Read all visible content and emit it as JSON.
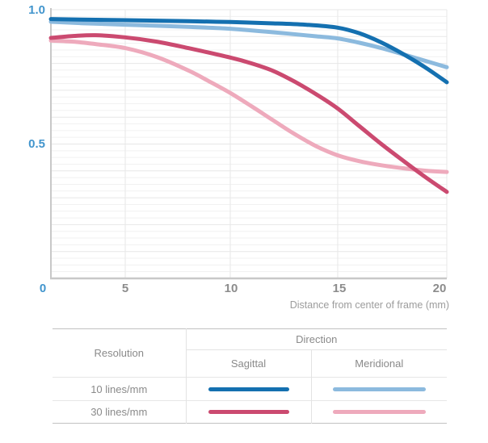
{
  "chart": {
    "y_axis": {
      "top_label": "1.0",
      "mid_label": "0.5"
    },
    "origin_label": "0",
    "x_axis": {
      "tick_labels": [
        "5",
        "10",
        "15",
        "20"
      ],
      "caption": "Distance from center of frame (mm)"
    },
    "colors": {
      "tick_blue": "#4295cd",
      "tick_gray": "#8c8c8c",
      "caption_gray": "#9c9c9c",
      "axis_line": "#c8c8c8",
      "grid_minor": "#f1f1f1",
      "grid_major": "#e7e7e7"
    }
  },
  "chart_data": {
    "type": "line",
    "title": "",
    "xlabel": "Distance from center of frame (mm)",
    "ylabel": "",
    "xlim": [
      0,
      20
    ],
    "ylim": [
      0,
      1
    ],
    "x_ticks": [
      0,
      5,
      10,
      15,
      20
    ],
    "y_ticks": [
      0,
      0.5,
      1.0
    ],
    "grid": true,
    "legend_position": "bottom-table",
    "series": [
      {
        "key": "10-sagittal",
        "name": "10 lines/mm Sagittal",
        "color": "#1470b0",
        "points": [
          [
            0,
            0.965
          ],
          [
            2,
            0.963
          ],
          [
            5,
            0.961
          ],
          [
            8,
            0.957
          ],
          [
            10,
            0.954
          ],
          [
            12,
            0.949
          ],
          [
            13.5,
            0.944
          ],
          [
            15,
            0.933
          ],
          [
            16,
            0.912
          ],
          [
            17,
            0.878
          ],
          [
            18,
            0.835
          ],
          [
            19,
            0.786
          ],
          [
            20,
            0.73
          ]
        ]
      },
      {
        "key": "10-meridional",
        "name": "10 lines/mm Meridional",
        "color": "#8cbade",
        "points": [
          [
            0,
            0.955
          ],
          [
            2,
            0.95
          ],
          [
            5,
            0.944
          ],
          [
            8,
            0.936
          ],
          [
            10,
            0.929
          ],
          [
            12,
            0.916
          ],
          [
            14,
            0.901
          ],
          [
            15,
            0.893
          ],
          [
            16,
            0.877
          ],
          [
            17,
            0.857
          ],
          [
            18,
            0.834
          ],
          [
            19,
            0.81
          ],
          [
            20,
            0.786
          ]
        ]
      },
      {
        "key": "30-sagittal",
        "name": "30 lines/mm Sagittal",
        "color": "#cb4a70",
        "points": [
          [
            0,
            0.895
          ],
          [
            1.5,
            0.902
          ],
          [
            3,
            0.905
          ],
          [
            5,
            0.897
          ],
          [
            6.5,
            0.881
          ],
          [
            8,
            0.857
          ],
          [
            10,
            0.822
          ],
          [
            11,
            0.8
          ],
          [
            12,
            0.772
          ],
          [
            13,
            0.732
          ],
          [
            14,
            0.685
          ],
          [
            15,
            0.632
          ],
          [
            16,
            0.566
          ],
          [
            17,
            0.5
          ],
          [
            18,
            0.438
          ],
          [
            19,
            0.378
          ],
          [
            20,
            0.322
          ]
        ]
      },
      {
        "key": "30-meridional",
        "name": "30 lines/mm Meridional",
        "color": "#eeaabc",
        "points": [
          [
            0,
            0.885
          ],
          [
            1.5,
            0.881
          ],
          [
            3,
            0.872
          ],
          [
            5,
            0.857
          ],
          [
            6.5,
            0.824
          ],
          [
            8,
            0.774
          ],
          [
            9,
            0.733
          ],
          [
            10,
            0.69
          ],
          [
            11,
            0.64
          ],
          [
            12,
            0.588
          ],
          [
            13,
            0.537
          ],
          [
            14,
            0.492
          ],
          [
            15,
            0.458
          ],
          [
            16,
            0.436
          ],
          [
            17,
            0.421
          ],
          [
            18,
            0.41
          ],
          [
            19,
            0.401
          ],
          [
            20,
            0.396
          ]
        ]
      }
    ]
  },
  "legend_table": {
    "resolution_header": "Resolution",
    "direction_header": "Direction",
    "sagittal_header": "Sagittal",
    "meridional_header": "Meridional",
    "rows": [
      {
        "resolution": "10 lines/mm"
      },
      {
        "resolution": "30 lines/mm"
      }
    ]
  }
}
